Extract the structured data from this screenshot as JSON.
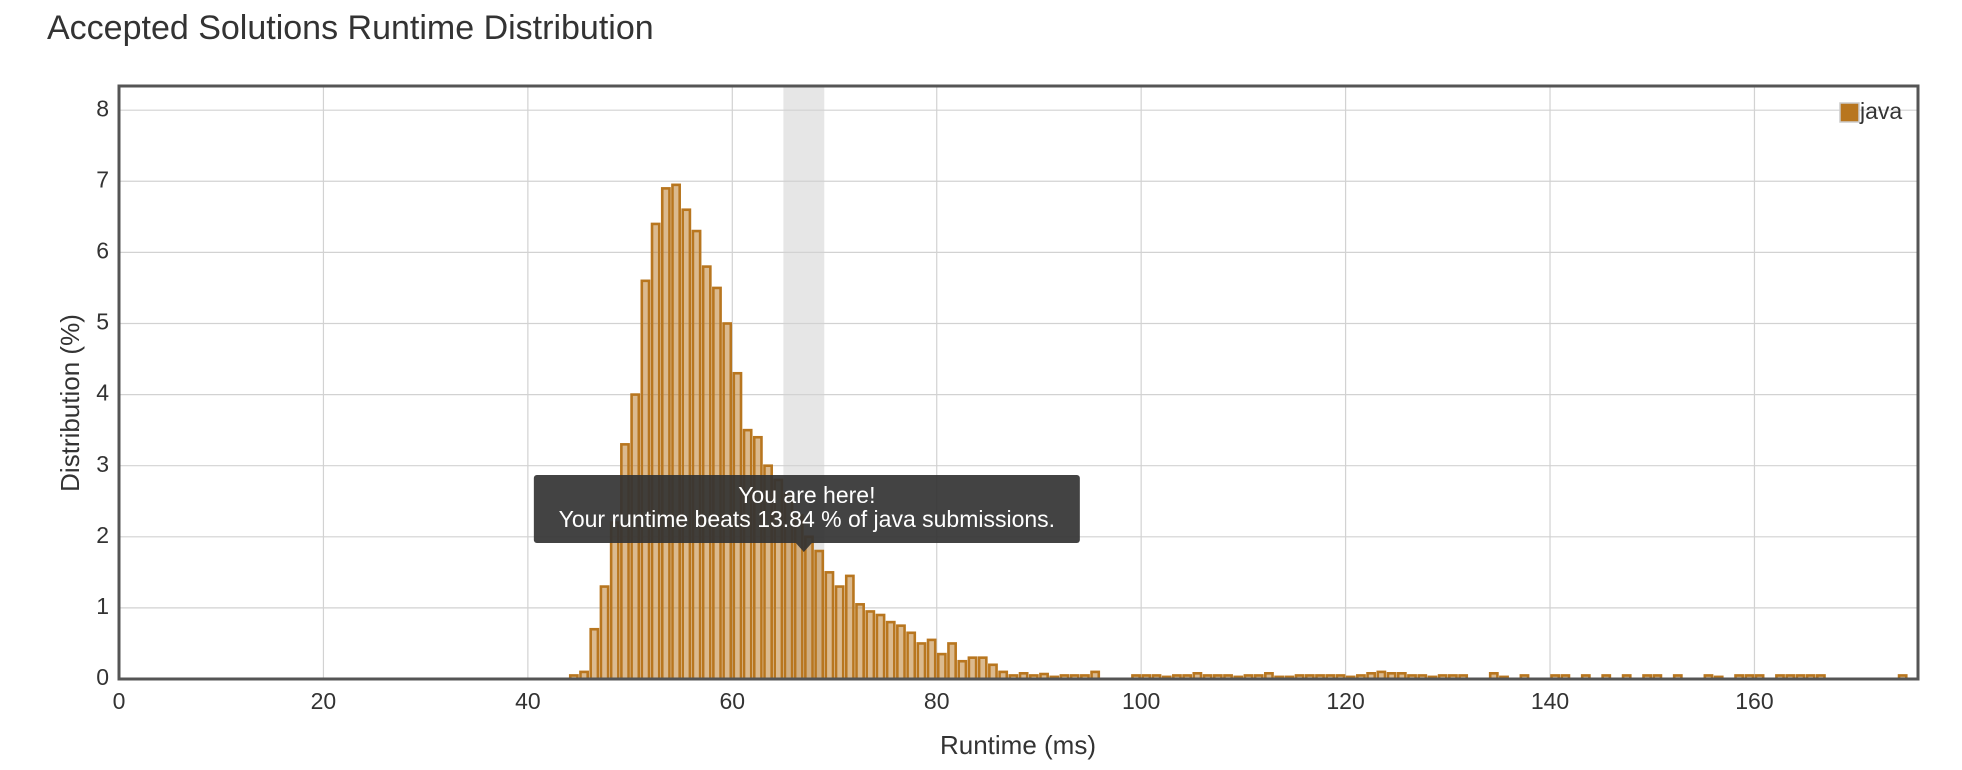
{
  "chart_data": {
    "type": "histogram",
    "title": "Accepted Solutions Runtime Distribution",
    "xlabel": "Runtime (ms)",
    "ylabel": "Distribution (%)",
    "bins": [
      44,
      45,
      46,
      47,
      48,
      49,
      50,
      51,
      52,
      53,
      54,
      55,
      56,
      57,
      58,
      59,
      60,
      61,
      62,
      63,
      64,
      65,
      66,
      67,
      68,
      69,
      70,
      71,
      72,
      73,
      74,
      75,
      76,
      77,
      78,
      79,
      80,
      81,
      82,
      83,
      84,
      85,
      86,
      87,
      88,
      89,
      90,
      91,
      92,
      93,
      94,
      95,
      96,
      97,
      98,
      99,
      100,
      101,
      102,
      103,
      104,
      105,
      106,
      107,
      108,
      109,
      110,
      111,
      112,
      113,
      114,
      115,
      116,
      117,
      118,
      119,
      120,
      121,
      122,
      123,
      124,
      125,
      126,
      127,
      128,
      129,
      130,
      131,
      132,
      133,
      134,
      135,
      136,
      137,
      138,
      139,
      140,
      141,
      142,
      143,
      144,
      145,
      146,
      147,
      148,
      149,
      150,
      151,
      152,
      153,
      154,
      155,
      156,
      157,
      158,
      159,
      160,
      161,
      162,
      163,
      164,
      165,
      166,
      167,
      168,
      169,
      170,
      171,
      172,
      173,
      174,
      175
    ],
    "series": [
      {
        "name": "java",
        "color": "#b8761f",
        "values": [
          0.05,
          0.1,
          0.7,
          1.3,
          2.2,
          3.3,
          4.0,
          5.6,
          6.4,
          6.9,
          6.95,
          6.6,
          6.3,
          5.8,
          5.5,
          5.0,
          4.3,
          3.5,
          3.4,
          3.0,
          2.8,
          2.6,
          2.3,
          2.0,
          1.8,
          1.5,
          1.3,
          1.45,
          1.05,
          0.95,
          0.9,
          0.8,
          0.75,
          0.65,
          0.5,
          0.55,
          0.35,
          0.5,
          0.25,
          0.3,
          0.3,
          0.2,
          0.1,
          0.05,
          0.08,
          0.05,
          0.07,
          0.03,
          0.05,
          0.05,
          0.05,
          0.1,
          0,
          0,
          0,
          0.05,
          0.05,
          0.05,
          0.03,
          0.05,
          0.05,
          0.08,
          0.05,
          0.05,
          0.05,
          0.03,
          0.05,
          0.05,
          0.08,
          0.03,
          0.03,
          0.05,
          0.05,
          0.05,
          0.05,
          0.05,
          0.03,
          0.05,
          0.08,
          0.1,
          0.08,
          0.08,
          0.05,
          0.05,
          0.03,
          0.05,
          0.05,
          0.05,
          0,
          0,
          0.08,
          0.03,
          0,
          0.05,
          0,
          0,
          0.05,
          0.05,
          0,
          0.05,
          0,
          0.05,
          0,
          0.05,
          0,
          0.05,
          0.05,
          0,
          0.05,
          0,
          0,
          0.05,
          0.03,
          0,
          0.05,
          0.05,
          0.05,
          0,
          0.05,
          0.05,
          0.05,
          0.05,
          0.05,
          0,
          0,
          0,
          0,
          0,
          0,
          0,
          0.05
        ]
      }
    ],
    "xlim": [
      0,
      176
    ],
    "xticks": [
      0,
      20,
      40,
      60,
      80,
      100,
      120,
      140,
      160
    ],
    "ylim": [
      0,
      8.34
    ],
    "yticks": [
      0,
      1,
      2,
      3,
      4,
      5,
      6,
      7,
      8
    ],
    "grid": true,
    "legend": "upper right",
    "highlight": [
      65,
      69
    ],
    "annotation": {
      "title": "You are here!",
      "text": "Your runtime beats 13.84 % of java submissions."
    }
  }
}
